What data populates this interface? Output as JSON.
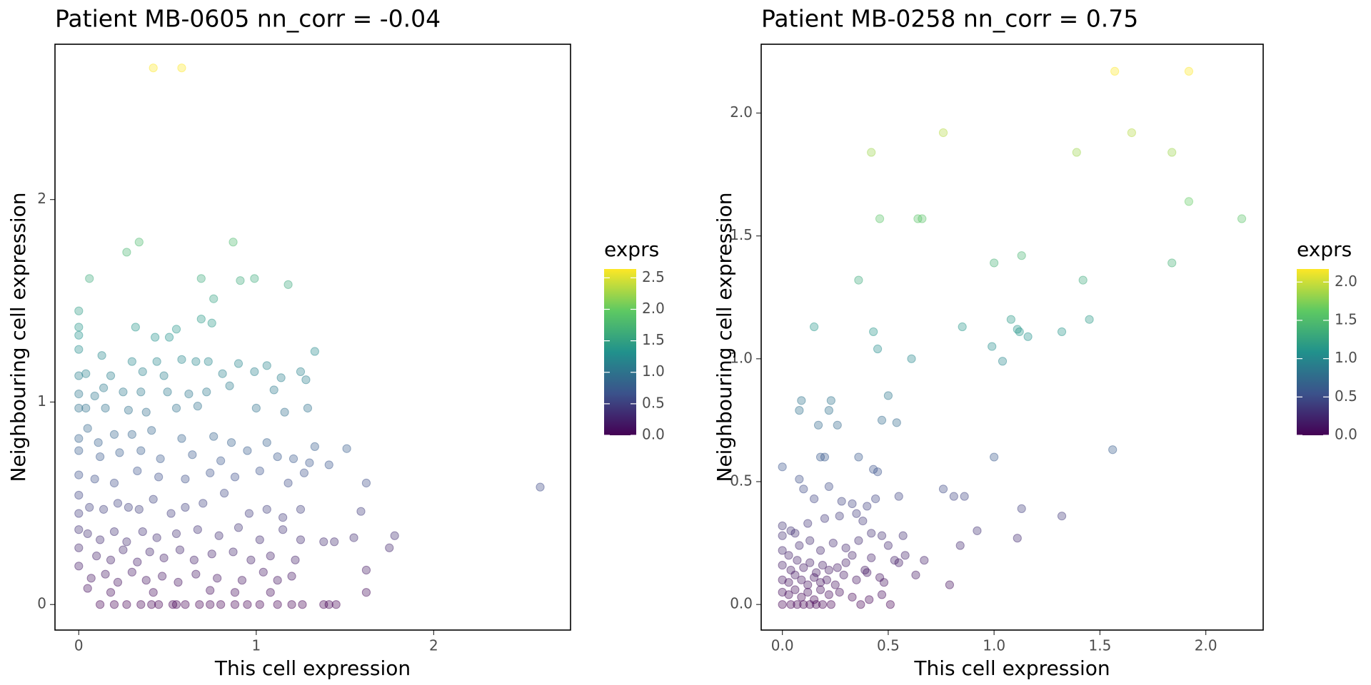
{
  "chart_data": [
    {
      "type": "scatter",
      "title": "Patient MB-0605 nn_corr = -0.04",
      "x_label": "This cell expression",
      "y_label": "Neighbouring cell expression",
      "x": [
        0.42,
        0.58,
        0.27,
        0.34,
        0.87,
        0.06,
        0.69,
        0.91,
        0.99,
        1.18,
        0.76,
        0,
        0,
        0,
        0.32,
        0.55,
        0.69,
        0.75,
        0.43,
        0.51,
        1.33,
        0,
        0.13,
        0.3,
        0.44,
        0.58,
        0.66,
        0.73,
        0.9,
        1.06,
        0,
        0.04,
        0.18,
        0.36,
        0.48,
        0.81,
        0.99,
        1.14,
        1.25,
        1.28,
        0,
        0.09,
        0.14,
        0.25,
        0.35,
        0.5,
        0.62,
        0.72,
        0.85,
        1.1,
        0,
        0.04,
        0.15,
        0.28,
        0.38,
        0.55,
        0.67,
        1.0,
        1.16,
        1.29,
        0,
        0.05,
        0.11,
        0.2,
        0.3,
        0.41,
        0.58,
        0.76,
        0.86,
        1.06,
        0,
        0.12,
        0.23,
        0.35,
        0.46,
        0.64,
        0.8,
        0.95,
        1.12,
        1.33,
        1.41,
        1.51,
        1.21,
        1.3,
        0,
        0.09,
        0.2,
        0.33,
        0.45,
        0.6,
        0.74,
        0.88,
        1.02,
        1.18,
        1.27,
        1.62,
        1.59,
        2.6,
        1.78,
        1.75,
        1.62,
        1.62,
        1.55,
        1.44,
        1.25,
        1.15,
        1.06,
        0.96,
        0.82,
        0.7,
        0,
        0,
        0.06,
        0.14,
        0.22,
        0.28,
        0.34,
        0.42,
        0.52,
        0.6,
        0,
        0.05,
        0.12,
        0.2,
        0.27,
        0.36,
        0.44,
        0.55,
        0.67,
        0.79,
        0.9,
        1.02,
        1.15,
        1.25,
        1.38,
        0,
        0.1,
        0.18,
        0.25,
        0.33,
        0.4,
        0.48,
        0.57,
        0.65,
        0.75,
        0.87,
        0.97,
        1.08,
        1.22,
        0,
        0.07,
        0.15,
        0.22,
        0.3,
        0.38,
        0.47,
        0.56,
        0.66,
        0.78,
        0.92,
        1.04,
        1.12,
        1.2,
        0.05,
        0.18,
        0.42,
        0.74,
        0.88,
        1.08,
        0.12,
        0.2,
        0.27,
        0.35,
        0.41,
        0.45,
        0.53,
        0.55,
        0.6,
        0.68,
        0.74,
        0.8,
        0.88,
        0.95,
        1.02,
        1.12,
        1.2,
        1.26,
        1.38,
        1.41,
        1.45
      ],
      "y": [
        2.65,
        2.65,
        1.74,
        1.79,
        1.79,
        1.61,
        1.61,
        1.6,
        1.61,
        1.58,
        1.51,
        1.45,
        1.37,
        1.33,
        1.37,
        1.36,
        1.41,
        1.39,
        1.32,
        1.32,
        1.25,
        1.26,
        1.23,
        1.2,
        1.2,
        1.21,
        1.2,
        1.2,
        1.19,
        1.18,
        1.13,
        1.14,
        1.13,
        1.15,
        1.13,
        1.14,
        1.15,
        1.12,
        1.15,
        1.11,
        1.04,
        1.03,
        1.07,
        1.05,
        1.05,
        1.05,
        1.04,
        1.05,
        1.08,
        1.06,
        0.97,
        0.97,
        0.97,
        0.96,
        0.95,
        0.97,
        0.98,
        0.97,
        0.95,
        0.97,
        0.82,
        0.87,
        0.8,
        0.84,
        0.84,
        0.86,
        0.82,
        0.83,
        0.8,
        0.8,
        0.76,
        0.73,
        0.75,
        0.76,
        0.72,
        0.74,
        0.71,
        0.76,
        0.73,
        0.78,
        0.69,
        0.77,
        0.72,
        0.7,
        0.64,
        0.62,
        0.6,
        0.66,
        0.63,
        0.62,
        0.65,
        0.63,
        0.66,
        0.6,
        0.65,
        0.6,
        0.46,
        0.58,
        0.34,
        0.28,
        0.17,
        0.06,
        0.33,
        0.31,
        0.47,
        0.43,
        0.47,
        0.45,
        0.55,
        0.5,
        0.54,
        0.45,
        0.48,
        0.47,
        0.5,
        0.48,
        0.47,
        0.52,
        0.45,
        0.48,
        0.37,
        0.35,
        0.32,
        0.36,
        0.31,
        0.36,
        0.33,
        0.35,
        0.37,
        0.34,
        0.38,
        0.32,
        0.37,
        0.32,
        0.31,
        0.28,
        0.24,
        0.22,
        0.27,
        0.21,
        0.26,
        0.23,
        0.27,
        0.22,
        0.25,
        0.26,
        0.22,
        0.24,
        0.22,
        0.19,
        0.13,
        0.15,
        0.11,
        0.16,
        0.12,
        0.14,
        0.11,
        0.15,
        0.13,
        0.12,
        0.16,
        0.12,
        0.14,
        0.08,
        0.06,
        0.06,
        0.07,
        0.06,
        0.06,
        0,
        0,
        0,
        0,
        0,
        0,
        0,
        0,
        0,
        0,
        0,
        0,
        0,
        0,
        0,
        0,
        0,
        0,
        0,
        0,
        0
      ],
      "xlim": [
        -0.134,
        2.771
      ],
      "ylim": [
        -0.126,
        2.767
      ],
      "xticks": [
        0,
        1,
        2
      ],
      "yticks": [
        0,
        1,
        2
      ],
      "colorbar": {
        "title": "exprs",
        "lim": [
          0,
          2.64
        ],
        "ticks": [
          {
            "value": 0,
            "label": "0.0"
          },
          {
            "value": 0.5,
            "label": "0.5"
          },
          {
            "value": 1,
            "label": "1.0"
          },
          {
            "value": 1.5,
            "label": "1.5"
          },
          {
            "value": 2,
            "label": "2.0"
          },
          2.5
        ],
        "colors": [
          "#440154",
          "#3b528b",
          "#21918c",
          "#5ec962",
          "#fde725"
        ]
      }
    },
    {
      "type": "scatter",
      "title": "Patient MB-0258 nn_corr = 0.75",
      "x_label": "This cell expression",
      "y_label": "Neighbouring cell expression",
      "x": [
        1.57,
        1.92,
        0.76,
        1.65,
        0.42,
        1.39,
        1.84,
        1.92,
        0.46,
        0.64,
        0.66,
        2.17,
        1.0,
        1.13,
        1.84,
        0.36,
        1.42,
        0.15,
        0.43,
        1.08,
        1.11,
        1.12,
        1.45,
        0.85,
        1.32,
        1.16,
        0.45,
        0.99,
        1.04,
        0.61,
        0.5,
        0.47,
        0.54,
        0.09,
        0.08,
        0.22,
        0.23,
        0.17,
        0.26,
        0.18,
        0.2,
        0.36,
        1.0,
        1.56,
        0,
        0.08,
        0.43,
        0.45,
        0.76,
        0.81,
        0.86,
        0.55,
        1.13,
        1.11,
        1.32,
        0.84,
        0.67,
        0.53,
        0.55,
        0.63,
        0.79,
        0.47,
        0.51,
        0.46,
        0,
        0.04,
        0.1,
        0.15,
        0.22,
        0.28,
        0.33,
        0.4,
        0.44,
        0.35,
        0.27,
        0.2,
        0.12,
        0.06,
        0,
        0.38,
        0,
        0.03,
        0.08,
        0.13,
        0.18,
        0.24,
        0.3,
        0.36,
        0.42,
        0.47,
        0,
        0.04,
        0.07,
        0.1,
        0.13,
        0.16,
        0.19,
        0.22,
        0.26,
        0.3,
        0,
        0.03,
        0.06,
        0.09,
        0.12,
        0.15,
        0.18,
        0.21,
        0.25,
        0.29,
        0,
        0.03,
        0.06,
        0.09,
        0.12,
        0.15,
        0.18,
        0.22,
        0.27,
        0.33,
        0,
        0.04,
        0.07,
        0.1,
        0.13,
        0.16,
        0.19,
        0.23,
        0.37,
        0.41,
        0.35,
        0.39,
        0.42,
        0.33,
        0.48,
        0.58,
        0.57,
        0.5,
        0.92,
        0.4
      ],
      "y": [
        2.17,
        2.17,
        1.92,
        1.92,
        1.84,
        1.84,
        1.84,
        1.64,
        1.57,
        1.57,
        1.57,
        1.57,
        1.39,
        1.42,
        1.39,
        1.32,
        1.32,
        1.13,
        1.11,
        1.16,
        1.12,
        1.11,
        1.16,
        1.13,
        1.11,
        1.09,
        1.04,
        1.05,
        0.99,
        1.0,
        0.85,
        0.75,
        0.74,
        0.83,
        0.79,
        0.79,
        0.83,
        0.73,
        0.73,
        0.6,
        0.6,
        0.6,
        0.6,
        0.63,
        0.56,
        0.51,
        0.55,
        0.54,
        0.47,
        0.44,
        0.44,
        0.44,
        0.39,
        0.27,
        0.36,
        0.24,
        0.18,
        0.18,
        0.17,
        0.12,
        0.08,
        0.04,
        0,
        0.11,
        0.32,
        0.3,
        0.47,
        0.43,
        0.48,
        0.42,
        0.41,
        0.4,
        0.43,
        0.37,
        0.36,
        0.35,
        0.33,
        0.29,
        0.28,
        0.34,
        0.22,
        0.2,
        0.24,
        0.26,
        0.22,
        0.25,
        0.23,
        0.26,
        0.29,
        0.28,
        0.16,
        0.14,
        0.18,
        0.15,
        0.17,
        0.13,
        0.16,
        0.14,
        0.15,
        0.17,
        0.1,
        0.09,
        0.12,
        0.1,
        0.08,
        0.11,
        0.09,
        0.1,
        0.08,
        0.12,
        0.05,
        0.04,
        0.06,
        0.03,
        0.05,
        0.02,
        0.06,
        0.04,
        0.05,
        0.03,
        0,
        0,
        0,
        0,
        0,
        0,
        0,
        0,
        0,
        0.02,
        0.1,
        0.14,
        0.19,
        0.2,
        0.09,
        0.2,
        0.28,
        0.24,
        0.3,
        0.13
      ],
      "xlim": [
        -0.1,
        2.271
      ],
      "ylim": [
        -0.104,
        2.28
      ],
      "xticks": [
        {
          "value": 0,
          "label": "0.0"
        },
        {
          "value": 0.5,
          "label": "0.5"
        },
        {
          "value": 1,
          "label": "1.0"
        },
        {
          "value": 1.5,
          "label": "1.5"
        },
        {
          "value": 2,
          "label": "2.0"
        }
      ],
      "yticks": [
        {
          "value": 0,
          "label": "0.0"
        },
        {
          "value": 0.5,
          "label": "0.5"
        },
        {
          "value": 1,
          "label": "1.0"
        },
        {
          "value": 1.5,
          "label": "1.5"
        },
        {
          "value": 2,
          "label": "2.0"
        }
      ],
      "colorbar": {
        "title": "exprs",
        "lim": [
          0,
          2.17
        ],
        "ticks": [
          {
            "value": 0,
            "label": "0.0"
          },
          {
            "value": 0.5,
            "label": "0.5"
          },
          {
            "value": 1,
            "label": "1.0"
          },
          {
            "value": 1.5,
            "label": "1.5"
          },
          {
            "value": 2,
            "label": "2.0"
          }
        ],
        "colors": [
          "#440154",
          "#3b528b",
          "#21918c",
          "#5ec962",
          "#fde725"
        ]
      }
    }
  ]
}
